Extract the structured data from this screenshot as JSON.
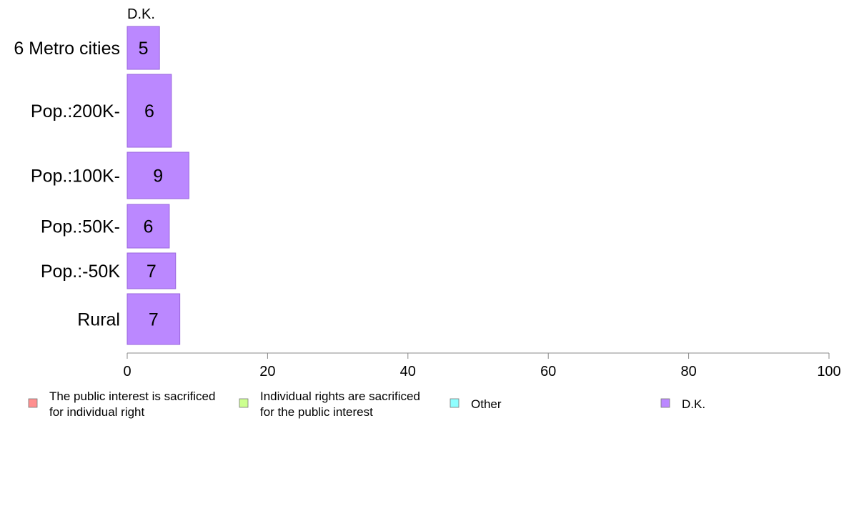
{
  "chart_data": {
    "type": "bar",
    "orientation": "horizontal",
    "stacked": true,
    "categories": [
      "6 Metro cities",
      "Pop.:200K-",
      "Pop.:100K-",
      "Pop.:50K-",
      "Pop.:-50K",
      "Rural"
    ],
    "series": [
      {
        "name": "The public interest is sacrificed for individual right",
        "label_lines": [
          "The public interest is sacrificed",
          "for individual right"
        ],
        "color": "#ff8f8f",
        "values": [
          0,
          0,
          0,
          0,
          0,
          0
        ]
      },
      {
        "name": "Individual rights are sacrificed for the public interest",
        "label_lines": [
          "Individual rights are sacrificed",
          "for the public interest"
        ],
        "color": "#ccff8f",
        "values": [
          0,
          0,
          0,
          0,
          0,
          0
        ]
      },
      {
        "name": "Other",
        "label_lines": [
          "Other"
        ],
        "color": "#8fffff",
        "values": [
          0,
          0,
          0,
          0,
          0,
          0
        ]
      },
      {
        "name": "D.K.",
        "label_lines": [
          "D.K."
        ],
        "color": "#bb88ff",
        "values": [
          4.6,
          6.3,
          8.8,
          6.0,
          6.9,
          7.5
        ]
      }
    ],
    "data_labels": [
      "5",
      "6",
      "9",
      "6",
      "7",
      "7"
    ],
    "column_header": "D.K.",
    "xlim": [
      0,
      100
    ],
    "xticks": [
      0,
      20,
      40,
      60,
      80,
      100
    ],
    "xlabel": "",
    "ylabel": "",
    "title": "",
    "grid": false,
    "legend_position": "bottom"
  },
  "colors": {
    "bar_stroke": "#9a66dd",
    "axis": "#888888"
  }
}
